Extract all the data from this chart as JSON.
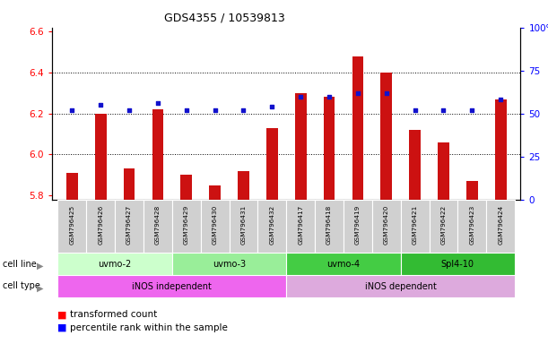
{
  "title": "GDS4355 / 10539813",
  "samples": [
    "GSM796425",
    "GSM796426",
    "GSM796427",
    "GSM796428",
    "GSM796429",
    "GSM796430",
    "GSM796431",
    "GSM796432",
    "GSM796417",
    "GSM796418",
    "GSM796419",
    "GSM796420",
    "GSM796421",
    "GSM796422",
    "GSM796423",
    "GSM796424"
  ],
  "transformed_count": [
    5.91,
    6.2,
    5.93,
    6.22,
    5.9,
    5.85,
    5.92,
    6.13,
    6.3,
    6.28,
    6.48,
    6.4,
    6.12,
    6.06,
    5.87,
    6.27
  ],
  "percentile_rank": [
    52,
    55,
    52,
    56,
    52,
    52,
    52,
    54,
    60,
    60,
    62,
    62,
    52,
    52,
    52,
    58
  ],
  "cell_line_groups": [
    {
      "name": "uvmo-2",
      "start": 0,
      "end": 4,
      "color": "#ccffcc"
    },
    {
      "name": "uvmo-3",
      "start": 4,
      "end": 8,
      "color": "#99ee99"
    },
    {
      "name": "uvmo-4",
      "start": 8,
      "end": 12,
      "color": "#44cc44"
    },
    {
      "name": "Spl4-10",
      "start": 12,
      "end": 16,
      "color": "#33bb33"
    }
  ],
  "cell_type_groups": [
    {
      "name": "iNOS independent",
      "start": 0,
      "end": 8,
      "color": "#ee66ee"
    },
    {
      "name": "iNOS dependent",
      "start": 8,
      "end": 16,
      "color": "#ddaadd"
    }
  ],
  "ylim_left": [
    5.78,
    6.62
  ],
  "ylim_right": [
    0,
    100
  ],
  "yticks_left": [
    5.8,
    6.0,
    6.2,
    6.4,
    6.6
  ],
  "yticks_right": [
    0,
    25,
    50,
    75,
    100
  ],
  "grid_lines": [
    6.0,
    6.2,
    6.4
  ],
  "bar_color": "#cc1111",
  "dot_color": "#1111cc",
  "bar_bottom": 5.78,
  "bar_width": 0.4
}
